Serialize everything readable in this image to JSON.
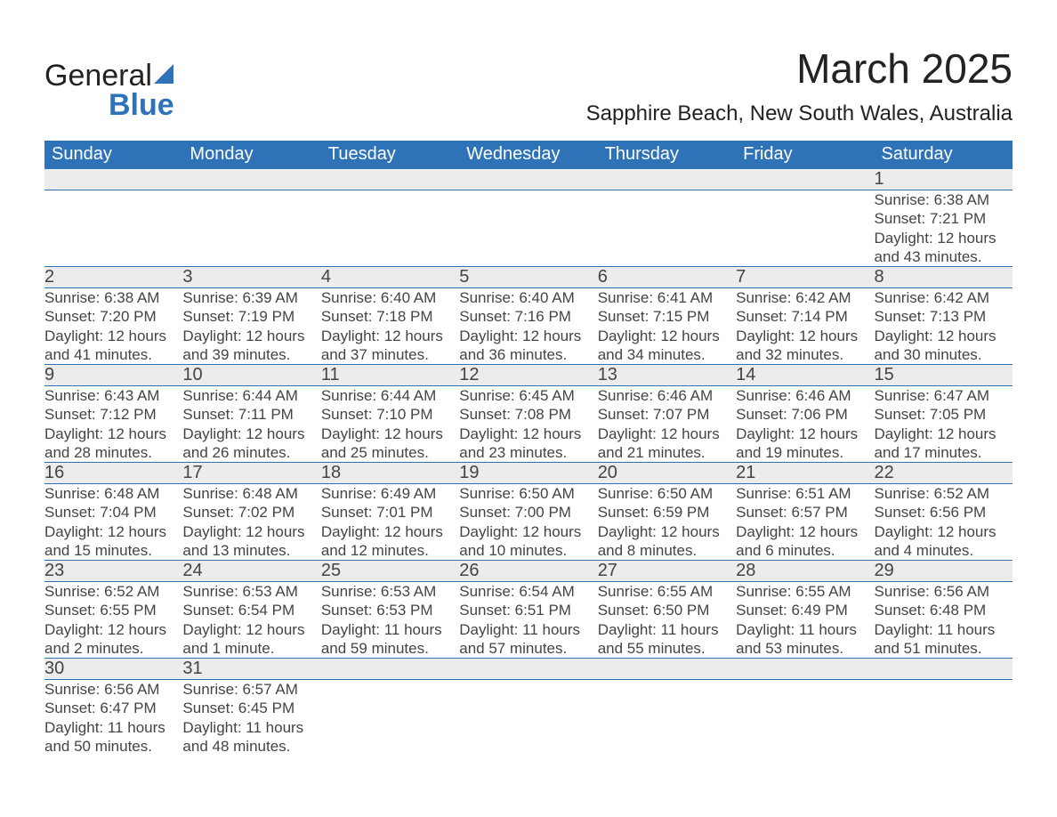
{
  "brand": {
    "name1": "General",
    "name2": "Blue"
  },
  "title": "March 2025",
  "location": "Sapphire Beach, New South Wales, Australia",
  "calendar": {
    "day_headers": [
      "Sunday",
      "Monday",
      "Tuesday",
      "Wednesday",
      "Thursday",
      "Friday",
      "Saturday"
    ],
    "header_bg": "#2e73b8",
    "header_fg": "#ffffff",
    "daynum_bg": "#ececec",
    "border_color": "#2e73b8",
    "text_color": "#444444",
    "weeks": [
      [
        null,
        null,
        null,
        null,
        null,
        null,
        {
          "n": "1",
          "sunrise": "6:38 AM",
          "sunset": "7:21 PM",
          "daylight": "12 hours and 43 minutes."
        }
      ],
      [
        {
          "n": "2",
          "sunrise": "6:38 AM",
          "sunset": "7:20 PM",
          "daylight": "12 hours and 41 minutes."
        },
        {
          "n": "3",
          "sunrise": "6:39 AM",
          "sunset": "7:19 PM",
          "daylight": "12 hours and 39 minutes."
        },
        {
          "n": "4",
          "sunrise": "6:40 AM",
          "sunset": "7:18 PM",
          "daylight": "12 hours and 37 minutes."
        },
        {
          "n": "5",
          "sunrise": "6:40 AM",
          "sunset": "7:16 PM",
          "daylight": "12 hours and 36 minutes."
        },
        {
          "n": "6",
          "sunrise": "6:41 AM",
          "sunset": "7:15 PM",
          "daylight": "12 hours and 34 minutes."
        },
        {
          "n": "7",
          "sunrise": "6:42 AM",
          "sunset": "7:14 PM",
          "daylight": "12 hours and 32 minutes."
        },
        {
          "n": "8",
          "sunrise": "6:42 AM",
          "sunset": "7:13 PM",
          "daylight": "12 hours and 30 minutes."
        }
      ],
      [
        {
          "n": "9",
          "sunrise": "6:43 AM",
          "sunset": "7:12 PM",
          "daylight": "12 hours and 28 minutes."
        },
        {
          "n": "10",
          "sunrise": "6:44 AM",
          "sunset": "7:11 PM",
          "daylight": "12 hours and 26 minutes."
        },
        {
          "n": "11",
          "sunrise": "6:44 AM",
          "sunset": "7:10 PM",
          "daylight": "12 hours and 25 minutes."
        },
        {
          "n": "12",
          "sunrise": "6:45 AM",
          "sunset": "7:08 PM",
          "daylight": "12 hours and 23 minutes."
        },
        {
          "n": "13",
          "sunrise": "6:46 AM",
          "sunset": "7:07 PM",
          "daylight": "12 hours and 21 minutes."
        },
        {
          "n": "14",
          "sunrise": "6:46 AM",
          "sunset": "7:06 PM",
          "daylight": "12 hours and 19 minutes."
        },
        {
          "n": "15",
          "sunrise": "6:47 AM",
          "sunset": "7:05 PM",
          "daylight": "12 hours and 17 minutes."
        }
      ],
      [
        {
          "n": "16",
          "sunrise": "6:48 AM",
          "sunset": "7:04 PM",
          "daylight": "12 hours and 15 minutes."
        },
        {
          "n": "17",
          "sunrise": "6:48 AM",
          "sunset": "7:02 PM",
          "daylight": "12 hours and 13 minutes."
        },
        {
          "n": "18",
          "sunrise": "6:49 AM",
          "sunset": "7:01 PM",
          "daylight": "12 hours and 12 minutes."
        },
        {
          "n": "19",
          "sunrise": "6:50 AM",
          "sunset": "7:00 PM",
          "daylight": "12 hours and 10 minutes."
        },
        {
          "n": "20",
          "sunrise": "6:50 AM",
          "sunset": "6:59 PM",
          "daylight": "12 hours and 8 minutes."
        },
        {
          "n": "21",
          "sunrise": "6:51 AM",
          "sunset": "6:57 PM",
          "daylight": "12 hours and 6 minutes."
        },
        {
          "n": "22",
          "sunrise": "6:52 AM",
          "sunset": "6:56 PM",
          "daylight": "12 hours and 4 minutes."
        }
      ],
      [
        {
          "n": "23",
          "sunrise": "6:52 AM",
          "sunset": "6:55 PM",
          "daylight": "12 hours and 2 minutes."
        },
        {
          "n": "24",
          "sunrise": "6:53 AM",
          "sunset": "6:54 PM",
          "daylight": "12 hours and 1 minute."
        },
        {
          "n": "25",
          "sunrise": "6:53 AM",
          "sunset": "6:53 PM",
          "daylight": "11 hours and 59 minutes."
        },
        {
          "n": "26",
          "sunrise": "6:54 AM",
          "sunset": "6:51 PM",
          "daylight": "11 hours and 57 minutes."
        },
        {
          "n": "27",
          "sunrise": "6:55 AM",
          "sunset": "6:50 PM",
          "daylight": "11 hours and 55 minutes."
        },
        {
          "n": "28",
          "sunrise": "6:55 AM",
          "sunset": "6:49 PM",
          "daylight": "11 hours and 53 minutes."
        },
        {
          "n": "29",
          "sunrise": "6:56 AM",
          "sunset": "6:48 PM",
          "daylight": "11 hours and 51 minutes."
        }
      ],
      [
        {
          "n": "30",
          "sunrise": "6:56 AM",
          "sunset": "6:47 PM",
          "daylight": "11 hours and 50 minutes."
        },
        {
          "n": "31",
          "sunrise": "6:57 AM",
          "sunset": "6:45 PM",
          "daylight": "11 hours and 48 minutes."
        },
        null,
        null,
        null,
        null,
        null
      ]
    ],
    "labels": {
      "sunrise": "Sunrise: ",
      "sunset": "Sunset: ",
      "daylight": "Daylight: "
    }
  }
}
